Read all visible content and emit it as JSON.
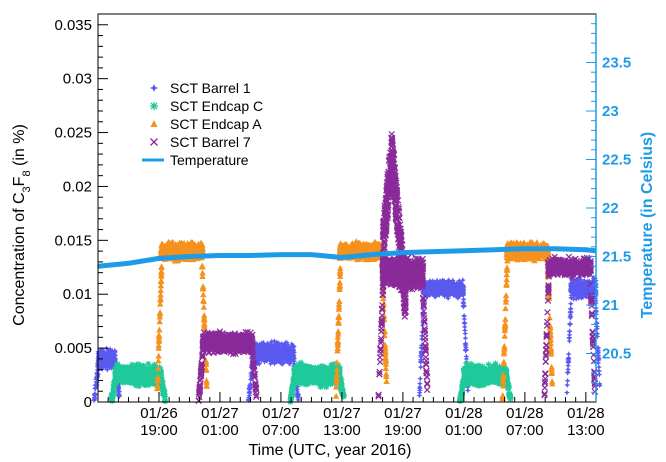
{
  "chart_data": {
    "type": "scatter",
    "xlabel": "Time (UTC, year 2016)",
    "ylabel_left": "Concentration of C3F8 (in %)",
    "ylabel_right": "Temperature (in Celsius)",
    "ylim_left": [
      0,
      0.036
    ],
    "ylim_right": [
      20,
      24
    ],
    "x_unit": "hours since 2016-01-26 13:00 UTC",
    "xlim": [
      0,
      49
    ],
    "x_ticks": [
      {
        "x": 6,
        "date": "01/26",
        "time": "19:00"
      },
      {
        "x": 12,
        "date": "01/27",
        "time": "01:00"
      },
      {
        "x": 18,
        "date": "01/27",
        "time": "07:00"
      },
      {
        "x": 24,
        "date": "01/27",
        "time": "13:00"
      },
      {
        "x": 30,
        "date": "01/27",
        "time": "19:00"
      },
      {
        "x": 36,
        "date": "01/28",
        "time": "01:00"
      },
      {
        "x": 42,
        "date": "01/28",
        "time": "07:00"
      },
      {
        "x": 48,
        "date": "01/28",
        "time": "13:00"
      }
    ],
    "y_ticks_left": [
      "0",
      "0.005",
      "0.01",
      "0.015",
      "0.02",
      "0.025",
      "0.03",
      "0.035"
    ],
    "y_tick_values_left": [
      0,
      0.005,
      0.01,
      0.015,
      0.02,
      0.025,
      0.03,
      0.035
    ],
    "y_ticks_right": [
      "20.5",
      "21",
      "21.5",
      "22",
      "22.5",
      "23",
      "23.5"
    ],
    "y_tick_values_right": [
      20.5,
      21,
      21.5,
      22,
      22.5,
      23,
      23.5
    ],
    "legend_position": "top-left",
    "series": [
      {
        "name": "SCT Barrel 1",
        "color": "#5a5af0",
        "marker": "star",
        "segments": [
          {
            "x0": 0.0,
            "x1": 1.7,
            "y": 0.004,
            "spread": 0.0012
          },
          {
            "x0": 15.2,
            "x1": 19.3,
            "y": 0.0045,
            "spread": 0.0013
          },
          {
            "x0": 32.0,
            "x1": 36.0,
            "y": 0.0105,
            "spread": 0.001
          },
          {
            "x0": 46.5,
            "x1": 49.0,
            "y": 0.0105,
            "spread": 0.0012
          }
        ]
      },
      {
        "name": "SCT Endcap C",
        "color": "#1fc99a",
        "marker": "asterisk",
        "segments": [
          {
            "x0": 1.7,
            "x1": 6.2,
            "y": 0.0025,
            "spread": 0.0012
          },
          {
            "x0": 19.3,
            "x1": 23.8,
            "y": 0.0025,
            "spread": 0.0012
          },
          {
            "x0": 36.0,
            "x1": 40.2,
            "y": 0.0025,
            "spread": 0.0012
          }
        ]
      },
      {
        "name": "SCT Endcap A",
        "color": "#f5921e",
        "marker": "triangle",
        "segments": [
          {
            "x0": 6.2,
            "x1": 10.3,
            "y": 0.014,
            "spread": 0.001
          },
          {
            "x0": 23.8,
            "x1": 28.0,
            "y": 0.014,
            "spread": 0.001
          },
          {
            "x0": 40.2,
            "x1": 44.3,
            "y": 0.014,
            "spread": 0.001
          }
        ]
      },
      {
        "name": "SCT Barrel 7",
        "color": "#8a2a9a",
        "marker": "cross",
        "segments": [
          {
            "x0": 10.3,
            "x1": 15.2,
            "y": 0.0055,
            "spread": 0.0012
          },
          {
            "x0": 28.0,
            "x1": 32.0,
            "y": 0.012,
            "spread": 0.002
          },
          {
            "x0": 44.3,
            "x1": 48.5,
            "y": 0.0125,
            "spread": 0.001
          }
        ],
        "peak": {
          "x": 28.9,
          "y": 0.0252
        }
      },
      {
        "name": "Temperature",
        "color": "#1e9be8",
        "marker": "line",
        "axis": "right",
        "x": [
          0,
          3,
          6,
          9,
          12,
          15,
          18,
          21,
          24,
          27,
          30,
          33,
          36,
          39,
          42,
          45,
          48,
          49
        ],
        "y": [
          21.4,
          21.43,
          21.48,
          21.5,
          21.51,
          21.51,
          21.52,
          21.52,
          21.49,
          21.52,
          21.54,
          21.55,
          21.56,
          21.57,
          21.58,
          21.58,
          21.57,
          21.56
        ]
      }
    ]
  },
  "legend": {
    "items": [
      "SCT Barrel 1",
      "SCT Endcap C",
      "SCT Endcap A",
      "SCT Barrel 7",
      "Temperature"
    ]
  }
}
